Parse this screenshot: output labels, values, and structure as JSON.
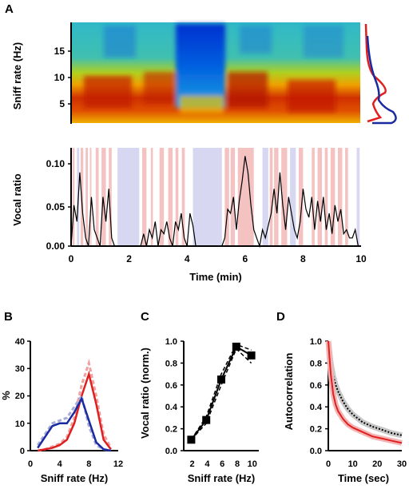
{
  "panel_labels": {
    "a": "A",
    "b": "B",
    "c": "C",
    "d": "D"
  },
  "chart_data": [
    {
      "id": "A-top",
      "type": "heatmap",
      "xlabel": "",
      "ylabel": "Sniff rate (Hz)",
      "xlim": [
        0,
        10
      ],
      "ylim": [
        1,
        20
      ],
      "yticks": [
        "5",
        "10",
        "15"
      ],
      "colormap": "jet",
      "side_distributions": [
        {
          "color": "#e02020",
          "peak_hz": 8
        },
        {
          "color": "#1a2aa0",
          "peak_hz": 3
        }
      ]
    },
    {
      "id": "A-bottom",
      "type": "line",
      "xlabel": "Time (min)",
      "ylabel": "Vocal ratio",
      "xlim": [
        0,
        10
      ],
      "ylim": [
        0,
        0.12
      ],
      "xticks": [
        "0",
        "2",
        "4",
        "6",
        "8",
        "10"
      ],
      "yticks": [
        "0.00",
        "0.05",
        "0.10"
      ],
      "colors": {
        "line": "#000000",
        "shade_red": "#f5c2c2",
        "shade_blue": "#d7d7f2"
      },
      "x": [
        0.0,
        0.1,
        0.2,
        0.3,
        0.4,
        0.5,
        0.6,
        0.7,
        0.8,
        0.9,
        1.0,
        1.1,
        1.2,
        1.3,
        1.4,
        1.5,
        1.6,
        1.7,
        1.8,
        1.9,
        2.0,
        2.1,
        2.2,
        2.3,
        2.4,
        2.5,
        2.6,
        2.7,
        2.8,
        2.9,
        3.0,
        3.1,
        3.2,
        3.3,
        3.4,
        3.5,
        3.6,
        3.7,
        3.8,
        3.9,
        4.0,
        4.1,
        4.2,
        4.3,
        4.4,
        4.5,
        4.6,
        4.7,
        4.8,
        4.9,
        5.0,
        5.1,
        5.2,
        5.3,
        5.4,
        5.5,
        5.6,
        5.7,
        5.8,
        5.9,
        6.0,
        6.1,
        6.2,
        6.3,
        6.4,
        6.5,
        6.6,
        6.7,
        6.8,
        6.9,
        7.0,
        7.1,
        7.2,
        7.3,
        7.4,
        7.5,
        7.6,
        7.7,
        7.8,
        7.9,
        8.0,
        8.1,
        8.2,
        8.3,
        8.4,
        8.5,
        8.6,
        8.7,
        8.8,
        8.9,
        9.0,
        9.1,
        9.2,
        9.3,
        9.4,
        9.5,
        9.6,
        9.7,
        9.8,
        9.9,
        10.0
      ],
      "y": [
        0.0,
        0.05,
        0.03,
        0.09,
        0.04,
        0.01,
        0.0,
        0.06,
        0.02,
        0.01,
        0.0,
        0.06,
        0.03,
        0.07,
        0.01,
        0.0,
        0.0,
        0.0,
        0.0,
        0.0,
        0.0,
        0.0,
        0.0,
        0.0,
        0.0,
        0.015,
        0.0,
        0.02,
        0.01,
        0.03,
        0.0,
        0.02,
        0.015,
        0.03,
        0.01,
        0.0,
        0.03,
        0.02,
        0.04,
        0.01,
        0.0,
        0.04,
        0.025,
        0.0,
        0.0,
        0.0,
        0.0,
        0.0,
        0.0,
        0.0,
        0.0,
        0.0,
        0.0,
        0.01,
        0.045,
        0.04,
        0.06,
        0.02,
        0.055,
        0.08,
        0.11,
        0.09,
        0.05,
        0.02,
        0.01,
        0.0,
        0.02,
        0.01,
        0.025,
        0.04,
        0.07,
        0.04,
        0.09,
        0.05,
        0.02,
        0.06,
        0.04,
        0.02,
        0.01,
        0.03,
        0.07,
        0.045,
        0.035,
        0.06,
        0.02,
        0.055,
        0.03,
        0.06,
        0.02,
        0.04,
        0.015,
        0.05,
        0.03,
        0.045,
        0.015,
        0.02,
        0.01,
        0.01,
        0.02,
        0.0,
        0.0
      ]
    },
    {
      "id": "B",
      "type": "line",
      "xlabel": "Sniff rate (Hz)",
      "ylabel": "%",
      "xlim": [
        0,
        12
      ],
      "ylim": [
        0,
        40
      ],
      "xticks": [
        "0",
        "4",
        "8",
        "12"
      ],
      "yticks": [
        "0",
        "10",
        "20",
        "30",
        "40"
      ],
      "series": [
        {
          "color": "#e02020",
          "dashed_color": "#f0a0a0",
          "x": [
            1,
            2,
            3,
            4,
            5,
            6,
            7,
            8,
            9,
            10,
            11
          ],
          "values": [
            0,
            0.5,
            1,
            2,
            4,
            10,
            20,
            28,
            17,
            4,
            0.5
          ],
          "dashed_values": [
            0,
            0.5,
            1.5,
            2.5,
            5,
            12,
            24,
            32,
            20,
            6,
            1
          ]
        },
        {
          "color": "#1a2aa0",
          "dashed_color": "#a8acd8",
          "x": [
            1,
            2,
            3,
            4,
            5,
            6,
            7,
            8,
            9,
            10,
            11
          ],
          "values": [
            1,
            5,
            9,
            10,
            10,
            14,
            19,
            11,
            3,
            0.5,
            0
          ],
          "dashed_values": [
            2,
            6,
            10,
            11,
            12,
            16,
            20,
            9,
            2,
            0.5,
            0
          ]
        }
      ]
    },
    {
      "id": "C",
      "type": "line",
      "xlabel": "Sniff rate (Hz)",
      "ylabel": "Vocal ratio (norm.)",
      "xlim": [
        1,
        11
      ],
      "ylim": [
        0,
        1.0
      ],
      "xticks": [
        "2",
        "4",
        "6",
        "8",
        "10"
      ],
      "yticks": [
        "0.0",
        "0.2",
        "0.4",
        "0.6",
        "0.8",
        "1.0"
      ],
      "x": [
        2,
        4,
        6,
        8,
        10
      ],
      "values": [
        0.1,
        0.28,
        0.65,
        0.95,
        0.87
      ],
      "dashed_series": [
        [
          0.1,
          0.25,
          0.6,
          0.93,
          0.8
        ],
        [
          0.1,
          0.31,
          0.7,
          0.97,
          0.92
        ]
      ]
    },
    {
      "id": "D",
      "type": "line",
      "xlabel": "Time (sec)",
      "ylabel": "Autocorrelation",
      "xlim": [
        0,
        30
      ],
      "ylim": [
        0,
        1.0
      ],
      "xticks": [
        "0",
        "10",
        "20",
        "30"
      ],
      "yticks": [
        "0.0",
        "0.2",
        "0.4",
        "0.6",
        "0.8",
        "1.0"
      ],
      "series": [
        {
          "color": "#000000",
          "x": [
            0,
            0.5,
            1,
            2,
            3,
            4,
            6,
            8,
            10,
            14,
            18,
            22,
            26,
            30
          ],
          "values": [
            1.0,
            0.9,
            0.8,
            0.68,
            0.6,
            0.54,
            0.45,
            0.38,
            0.33,
            0.26,
            0.22,
            0.19,
            0.16,
            0.14
          ]
        },
        {
          "color": "#e02020",
          "x": [
            0,
            0.5,
            1,
            2,
            3,
            4,
            6,
            8,
            10,
            14,
            18,
            22,
            26,
            30
          ],
          "values": [
            1.0,
            0.85,
            0.7,
            0.52,
            0.42,
            0.36,
            0.29,
            0.24,
            0.21,
            0.17,
            0.13,
            0.11,
            0.09,
            0.07
          ]
        }
      ]
    }
  ]
}
